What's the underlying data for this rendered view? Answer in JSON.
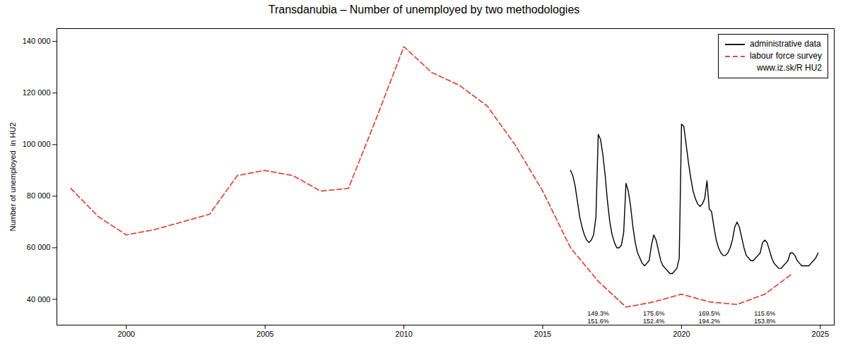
{
  "chart_data": {
    "type": "line",
    "title": "Transdanubia – Number of unemployed  by two methodologies",
    "ylabel": "Number of unemployed  in HU2",
    "xlim": [
      1997.5,
      2025.5
    ],
    "ylim": [
      30000,
      145000
    ],
    "xticks": [
      2000,
      2005,
      2010,
      2015,
      2020,
      2025
    ],
    "yticks": [
      {
        "value": 40000,
        "label": "40 000"
      },
      {
        "value": 60000,
        "label": "60 000"
      },
      {
        "value": 80000,
        "label": "80 000"
      },
      {
        "value": 100000,
        "label": "100 000"
      },
      {
        "value": 120000,
        "label": "120 000"
      },
      {
        "value": 140000,
        "label": "140 000"
      }
    ],
    "grid": false,
    "legend": "upper right",
    "series": [
      {
        "name": "administrative data",
        "color": "#000000",
        "line_style": "solid",
        "x": [
          2016.0,
          2016.083,
          2016.167,
          2016.25,
          2016.333,
          2016.417,
          2016.5,
          2016.583,
          2016.667,
          2016.75,
          2016.833,
          2016.917,
          2017.0,
          2017.083,
          2017.167,
          2017.25,
          2017.333,
          2017.417,
          2017.5,
          2017.583,
          2017.667,
          2017.75,
          2017.833,
          2017.917,
          2018.0,
          2018.083,
          2018.167,
          2018.25,
          2018.333,
          2018.417,
          2018.5,
          2018.583,
          2018.667,
          2018.75,
          2018.833,
          2018.917,
          2019.0,
          2019.083,
          2019.167,
          2019.25,
          2019.333,
          2019.417,
          2019.5,
          2019.583,
          2019.667,
          2019.75,
          2019.833,
          2019.917,
          2020.0,
          2020.083,
          2020.167,
          2020.25,
          2020.333,
          2020.417,
          2020.5,
          2020.583,
          2020.667,
          2020.75,
          2020.833,
          2020.917,
          2021.0,
          2021.083,
          2021.167,
          2021.25,
          2021.333,
          2021.417,
          2021.5,
          2021.583,
          2021.667,
          2021.75,
          2021.833,
          2021.917,
          2022.0,
          2022.083,
          2022.167,
          2022.25,
          2022.333,
          2022.417,
          2022.5,
          2022.583,
          2022.667,
          2022.75,
          2022.833,
          2022.917,
          2023.0,
          2023.083,
          2023.167,
          2023.25,
          2023.333,
          2023.417,
          2023.5,
          2023.583,
          2023.667,
          2023.75,
          2023.833,
          2023.917,
          2024.0,
          2024.083,
          2024.167,
          2024.25,
          2024.333,
          2024.417,
          2024.5,
          2024.583,
          2024.667,
          2024.75,
          2024.833,
          2024.917
        ],
        "values": [
          90000,
          88000,
          84000,
          78000,
          72000,
          68000,
          65000,
          63000,
          62000,
          63000,
          65000,
          72000,
          104000,
          102000,
          96000,
          88000,
          78000,
          70000,
          65000,
          62000,
          60000,
          60000,
          61000,
          66000,
          85000,
          82000,
          76000,
          68000,
          62000,
          58000,
          56000,
          54000,
          53000,
          54000,
          55000,
          61000,
          65000,
          63000,
          59000,
          55000,
          53000,
          52000,
          51000,
          50000,
          50000,
          51000,
          52000,
          56000,
          108000,
          107000,
          100000,
          93000,
          87000,
          82000,
          79000,
          77000,
          76000,
          77000,
          79000,
          86000,
          75000,
          74000,
          68000,
          63000,
          60000,
          58000,
          57000,
          57000,
          58000,
          60000,
          63000,
          68000,
          70000,
          68000,
          64000,
          60000,
          57000,
          56000,
          55000,
          55000,
          56000,
          57000,
          58000,
          62000,
          63000,
          62000,
          59000,
          56000,
          54000,
          53000,
          52000,
          52000,
          53000,
          54000,
          55000,
          58000,
          58000,
          57000,
          55000,
          54000,
          53000,
          53000,
          53000,
          53000,
          54000,
          55000,
          56000,
          58000
        ]
      },
      {
        "name": "labour force survey",
        "color": "#d94f43",
        "line_style": "dashed",
        "x": [
          1998,
          1999,
          2000,
          2001,
          2002,
          2003,
          2004,
          2005,
          2006,
          2007,
          2008,
          2009,
          2010,
          2011,
          2012,
          2013,
          2014,
          2015,
          2016,
          2017,
          2018,
          2019,
          2020,
          2021,
          2022,
          2023,
          2024
        ],
        "values": [
          83000,
          72000,
          65000,
          67000,
          70000,
          73000,
          88000,
          90000,
          88000,
          82000,
          83000,
          110000,
          138000,
          128000,
          123000,
          115000,
          100000,
          82000,
          60000,
          47000,
          37000,
          39000,
          42000,
          39000,
          38000,
          42000,
          50000
        ]
      }
    ],
    "annotations": [
      {
        "x": 2017.0,
        "y": 34500,
        "text": "149.3%"
      },
      {
        "x": 2019.0,
        "y": 34500,
        "text": "175.6%"
      },
      {
        "x": 2021.0,
        "y": 34500,
        "text": "169.5%"
      },
      {
        "x": 2023.0,
        "y": 34500,
        "text": "115.6%"
      },
      {
        "x": 2017.0,
        "y": 31500,
        "text": "151.6%"
      },
      {
        "x": 2019.0,
        "y": 31500,
        "text": "152.4%"
      },
      {
        "x": 2021.0,
        "y": 31500,
        "text": "194.2%"
      },
      {
        "x": 2023.0,
        "y": 31500,
        "text": "153.8%"
      },
      {
        "text": "www.iz.sk/R HU2"
      }
    ]
  }
}
